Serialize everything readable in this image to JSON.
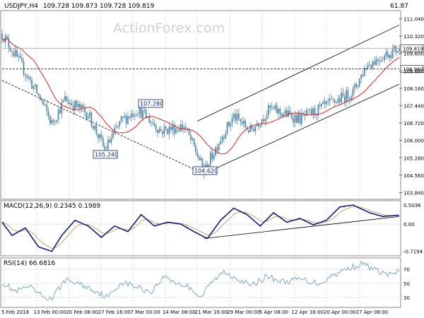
{
  "header": {
    "symbol": "USDJPY,H4",
    "ohlc": "109.728 109.873 109.728 109.819",
    "corner_value": "61.87"
  },
  "watermark": "ActionForex.com",
  "colors": {
    "candle": "#5a8aa8",
    "ma": "#e02020",
    "macd": "#0a1e7a",
    "signal": "#b8a878",
    "rsi": "#7aa8cc",
    "trendline": "#000000",
    "label_box": "#0a1e7a",
    "grid": "#c8c8c8"
  },
  "chart_data": [
    {
      "type": "candlestick",
      "pane": "main",
      "y_ticks": [
        "111.040",
        "110.320",
        "109.600",
        "108.880",
        "108.160",
        "107.440",
        "106.720",
        "106.000",
        "105.280",
        "104.560",
        "103.840"
      ],
      "y_tick_values": [
        111.04,
        110.32,
        109.6,
        108.88,
        108.16,
        107.44,
        106.72,
        106.0,
        105.28,
        104.56,
        103.84
      ],
      "ylim": [
        103.62,
        111.32
      ],
      "x_tick_labels": [
        "5 Feb 2018",
        "13 Feb 00:00",
        "20 Feb 08:00",
        "27 Feb 16:00",
        "7 Mar 00:00",
        "14 Mar 08:00",
        "21 Mar 16:00",
        "29 Mar 00:00",
        "5 Apr 08:00",
        "12 Apr 16:00",
        "20 Apr 00:00",
        "27 Apr 08:00"
      ],
      "price_keypoints": [
        [
          0,
          110.42
        ],
        [
          10,
          109.3
        ],
        [
          24,
          107.6
        ],
        [
          30,
          106.7
        ],
        [
          38,
          107.7
        ],
        [
          52,
          107.1
        ],
        [
          62,
          105.6
        ],
        [
          72,
          106.8
        ],
        [
          82,
          107.3
        ],
        [
          96,
          106.4
        ],
        [
          110,
          106.6
        ],
        [
          118,
          105.4
        ],
        [
          122,
          104.68
        ],
        [
          132,
          106.1
        ],
        [
          140,
          107.0
        ],
        [
          150,
          106.4
        ],
        [
          162,
          107.3
        ],
        [
          180,
          106.9
        ],
        [
          195,
          107.4
        ],
        [
          212,
          108.0
        ],
        [
          220,
          109.1
        ],
        [
          230,
          109.5
        ],
        [
          240,
          109.819
        ]
      ],
      "moving_average": {
        "shape": "sma",
        "period": 20
      },
      "annotations": [
        {
          "text": "107.280",
          "value": 107.28
        },
        {
          "text": "105.240",
          "value": 105.24
        },
        {
          "text": "104.620",
          "value": 104.62
        }
      ],
      "price_labels": [
        {
          "text": "109.819",
          "value": 109.819
        },
        {
          "text": "108.960",
          "value": 108.96
        }
      ],
      "horizontal_lines": [
        109.819,
        108.96
      ],
      "trendlines": [
        {
          "name": "falling support",
          "from": [
            0,
            108.48
          ],
          "to": [
            122,
            104.62
          ]
        },
        {
          "name": "channel lower",
          "from": [
            122,
            104.62
          ],
          "to": [
            240,
            108.33
          ]
        },
        {
          "name": "channel upper",
          "from": [
            118,
            106.8
          ],
          "to": [
            240,
            110.78
          ]
        }
      ]
    },
    {
      "type": "line",
      "pane": "macd",
      "title": "MACD(12,26,9) 0.2345 0.1989",
      "y_ticks": [
        "0.5036",
        "0.00",
        "-0.7194"
      ],
      "ylim": [
        -0.8,
        0.58
      ],
      "series": [
        {
          "name": "MACD",
          "values_key": "macd_keypoints"
        },
        {
          "name": "Signal",
          "values_key": "signal"
        }
      ],
      "macd_keypoints": [
        [
          0,
          0.05
        ],
        [
          6,
          -0.3
        ],
        [
          14,
          -0.1
        ],
        [
          22,
          -0.6
        ],
        [
          30,
          -0.72
        ],
        [
          36,
          -0.3
        ],
        [
          44,
          0.1
        ],
        [
          52,
          -0.05
        ],
        [
          60,
          -0.35
        ],
        [
          68,
          -0.05
        ],
        [
          76,
          -0.2
        ],
        [
          84,
          0.25
        ],
        [
          92,
          -0.05
        ],
        [
          100,
          0.05
        ],
        [
          108,
          0.0
        ],
        [
          116,
          -0.2
        ],
        [
          124,
          -0.38
        ],
        [
          132,
          0.1
        ],
        [
          140,
          0.42
        ],
        [
          148,
          0.25
        ],
        [
          156,
          -0.05
        ],
        [
          164,
          0.3
        ],
        [
          172,
          0.05
        ],
        [
          180,
          0.15
        ],
        [
          188,
          -0.02
        ],
        [
          196,
          0.1
        ],
        [
          204,
          0.45
        ],
        [
          212,
          0.5036
        ],
        [
          222,
          0.3
        ],
        [
          230,
          0.2
        ],
        [
          240,
          0.2345
        ]
      ],
      "trendline": {
        "from": [
          122,
          -0.38
        ],
        "to": [
          240,
          0.2
        ]
      }
    },
    {
      "type": "line",
      "pane": "rsi",
      "title": "RSI(14) 66.6816",
      "y_ticks": [
        "70",
        "50",
        "30"
      ],
      "ylim": [
        18,
        84
      ],
      "rsi_keypoints": [
        [
          0,
          52
        ],
        [
          8,
          38
        ],
        [
          16,
          45
        ],
        [
          24,
          32
        ],
        [
          30,
          28
        ],
        [
          38,
          55
        ],
        [
          46,
          50
        ],
        [
          56,
          40
        ],
        [
          64,
          30
        ],
        [
          72,
          52
        ],
        [
          80,
          46
        ],
        [
          90,
          38
        ],
        [
          98,
          60
        ],
        [
          106,
          50
        ],
        [
          114,
          44
        ],
        [
          120,
          30
        ],
        [
          126,
          50
        ],
        [
          134,
          66
        ],
        [
          142,
          58
        ],
        [
          150,
          46
        ],
        [
          160,
          60
        ],
        [
          170,
          52
        ],
        [
          180,
          56
        ],
        [
          192,
          50
        ],
        [
          200,
          62
        ],
        [
          210,
          72
        ],
        [
          218,
          78
        ],
        [
          226,
          68
        ],
        [
          234,
          62
        ],
        [
          240,
          66.6816
        ]
      ]
    }
  ]
}
